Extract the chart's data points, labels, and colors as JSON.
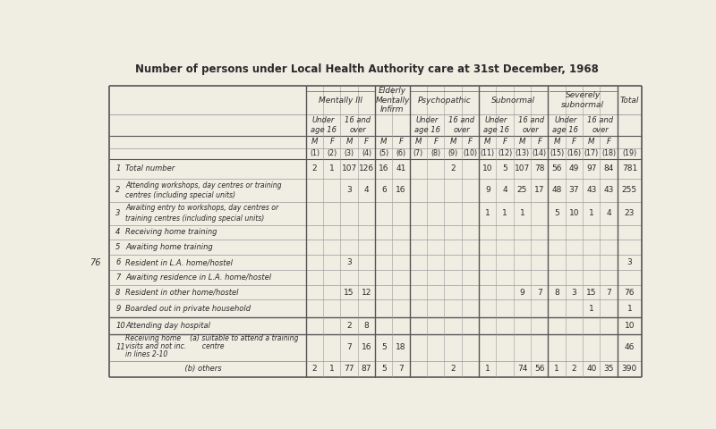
{
  "title": "Number of persons under Local Health Authority care at 31st December, 1968",
  "bg_color": "#f0ede3",
  "table_bg": "#f0ede3",
  "text_color": "#2a2a2a",
  "line_color_heavy": "#555555",
  "line_color_light": "#999999",
  "mf_headers": [
    "M",
    "F",
    "M",
    "F",
    "M",
    "F",
    "M",
    "F",
    "M",
    "F",
    "M",
    "F",
    "M",
    "F",
    "M",
    "F",
    "M",
    "F"
  ],
  "col_nums": [
    "(1)",
    "(2)",
    "(3)",
    "(4)",
    "(5)",
    "(6)",
    "(7)",
    "(8)",
    "(9)",
    "(10)",
    "(11)",
    "(12)",
    "(13)",
    "(14)",
    "(15)",
    "(16)",
    "(17)",
    "(18)",
    "(19)"
  ],
  "group_labels": [
    "Mentally Ill",
    "Elderly\nMentally\nInfirm",
    "Psychopathic",
    "Subnormal",
    "Severely\nsubnormal",
    "Total"
  ],
  "group_spans": [
    4,
    2,
    4,
    4,
    4,
    1
  ],
  "subgroup_labels": [
    "Under\nage 16",
    "16 and\nover",
    "",
    "Under\nage 16",
    "16 and\nover",
    "Under\nage 16",
    "16 and\nover",
    "Under\nage 16",
    "16 and\nover",
    ""
  ],
  "subgroup_spans": [
    2,
    2,
    2,
    2,
    2,
    2,
    2,
    2,
    2,
    1
  ],
  "row_nums": [
    "1",
    "2",
    "3",
    "4",
    "5",
    "6",
    "7",
    "8",
    "9",
    "10",
    "11",
    ""
  ],
  "row_label_main": [
    "Total number",
    "Attending workshops, day centres or training\ncentres (including special units)",
    "Awaiting entry to workshops, day centres or\ntraining centres (including special units)",
    "Receiving home training",
    "Awaiting home training",
    "Resident in L.A. home/hostel",
    "Awaiting residence in L.A. home/hostel",
    "Resident in other home/hostel",
    "Boarded out in private household",
    "Attending day hospital",
    "Receiving home    (a) suitable to attend a training\nvisits and not inc.       centre\nin lines 2-10",
    "    (b) others"
  ],
  "data": [
    [
      "2",
      "1",
      "107",
      "126",
      "16",
      "41",
      "",
      "",
      "2",
      "",
      "10",
      "5",
      "107",
      "78",
      "56",
      "49",
      "97",
      "84",
      "781"
    ],
    [
      "",
      "",
      "3",
      "4",
      "6",
      "16",
      "",
      "",
      "",
      "",
      "9",
      "4",
      "25",
      "17",
      "48",
      "37",
      "43",
      "43",
      "255"
    ],
    [
      "",
      "",
      "",
      "",
      "",
      "",
      "",
      "",
      "",
      "",
      "1",
      "1",
      "1",
      "",
      "5",
      "10",
      "1",
      "4",
      "23"
    ],
    [
      "",
      "",
      "",
      "",
      "",
      "",
      "",
      "",
      "",
      "",
      "",
      "",
      "",
      "",
      "",
      "",
      "",
      "",
      ""
    ],
    [
      "",
      "",
      "",
      "",
      "",
      "",
      "",
      "",
      "",
      "",
      "",
      "",
      "",
      "",
      "",
      "",
      "",
      "",
      ""
    ],
    [
      "",
      "",
      "3",
      "",
      "",
      "",
      "",
      "",
      "",
      "",
      "",
      "",
      "",
      "",
      "",
      "",
      "",
      "",
      "3"
    ],
    [
      "",
      "",
      "",
      "",
      "",
      "",
      "",
      "",
      "",
      "",
      "",
      "",
      "",
      "",
      "",
      "",
      "",
      "",
      ""
    ],
    [
      "",
      "",
      "15",
      "12",
      "",
      "",
      "",
      "",
      "",
      "",
      "",
      "",
      "9",
      "7",
      "8",
      "3",
      "15",
      "7",
      "76"
    ],
    [
      "",
      "",
      "",
      "",
      "",
      "",
      "",
      "",
      "",
      "",
      "",
      "",
      "",
      "",
      "",
      "",
      "1",
      "",
      "1"
    ],
    [
      "",
      "",
      "2",
      "8",
      "",
      "",
      "",
      "",
      "",
      "",
      "",
      "",
      "",
      "",
      "",
      "",
      "",
      "",
      "10"
    ],
    [
      "",
      "",
      "7",
      "16",
      "5",
      "18",
      "",
      "",
      "",
      "",
      "",
      "",
      "",
      "",
      "",
      "",
      "",
      "",
      "46"
    ],
    [
      "2",
      "1",
      "77",
      "87",
      "5",
      "7",
      "",
      "",
      "2",
      "",
      "1",
      "",
      "74",
      "56",
      "1",
      "2",
      "40",
      "35",
      "390"
    ]
  ],
  "side_number": "76",
  "side_number_row": 5,
  "col_widths_rel": [
    1,
    1,
    1,
    1,
    1,
    1,
    1,
    1,
    1,
    1,
    1,
    1,
    1,
    1,
    1,
    1,
    1,
    1,
    1.4
  ]
}
